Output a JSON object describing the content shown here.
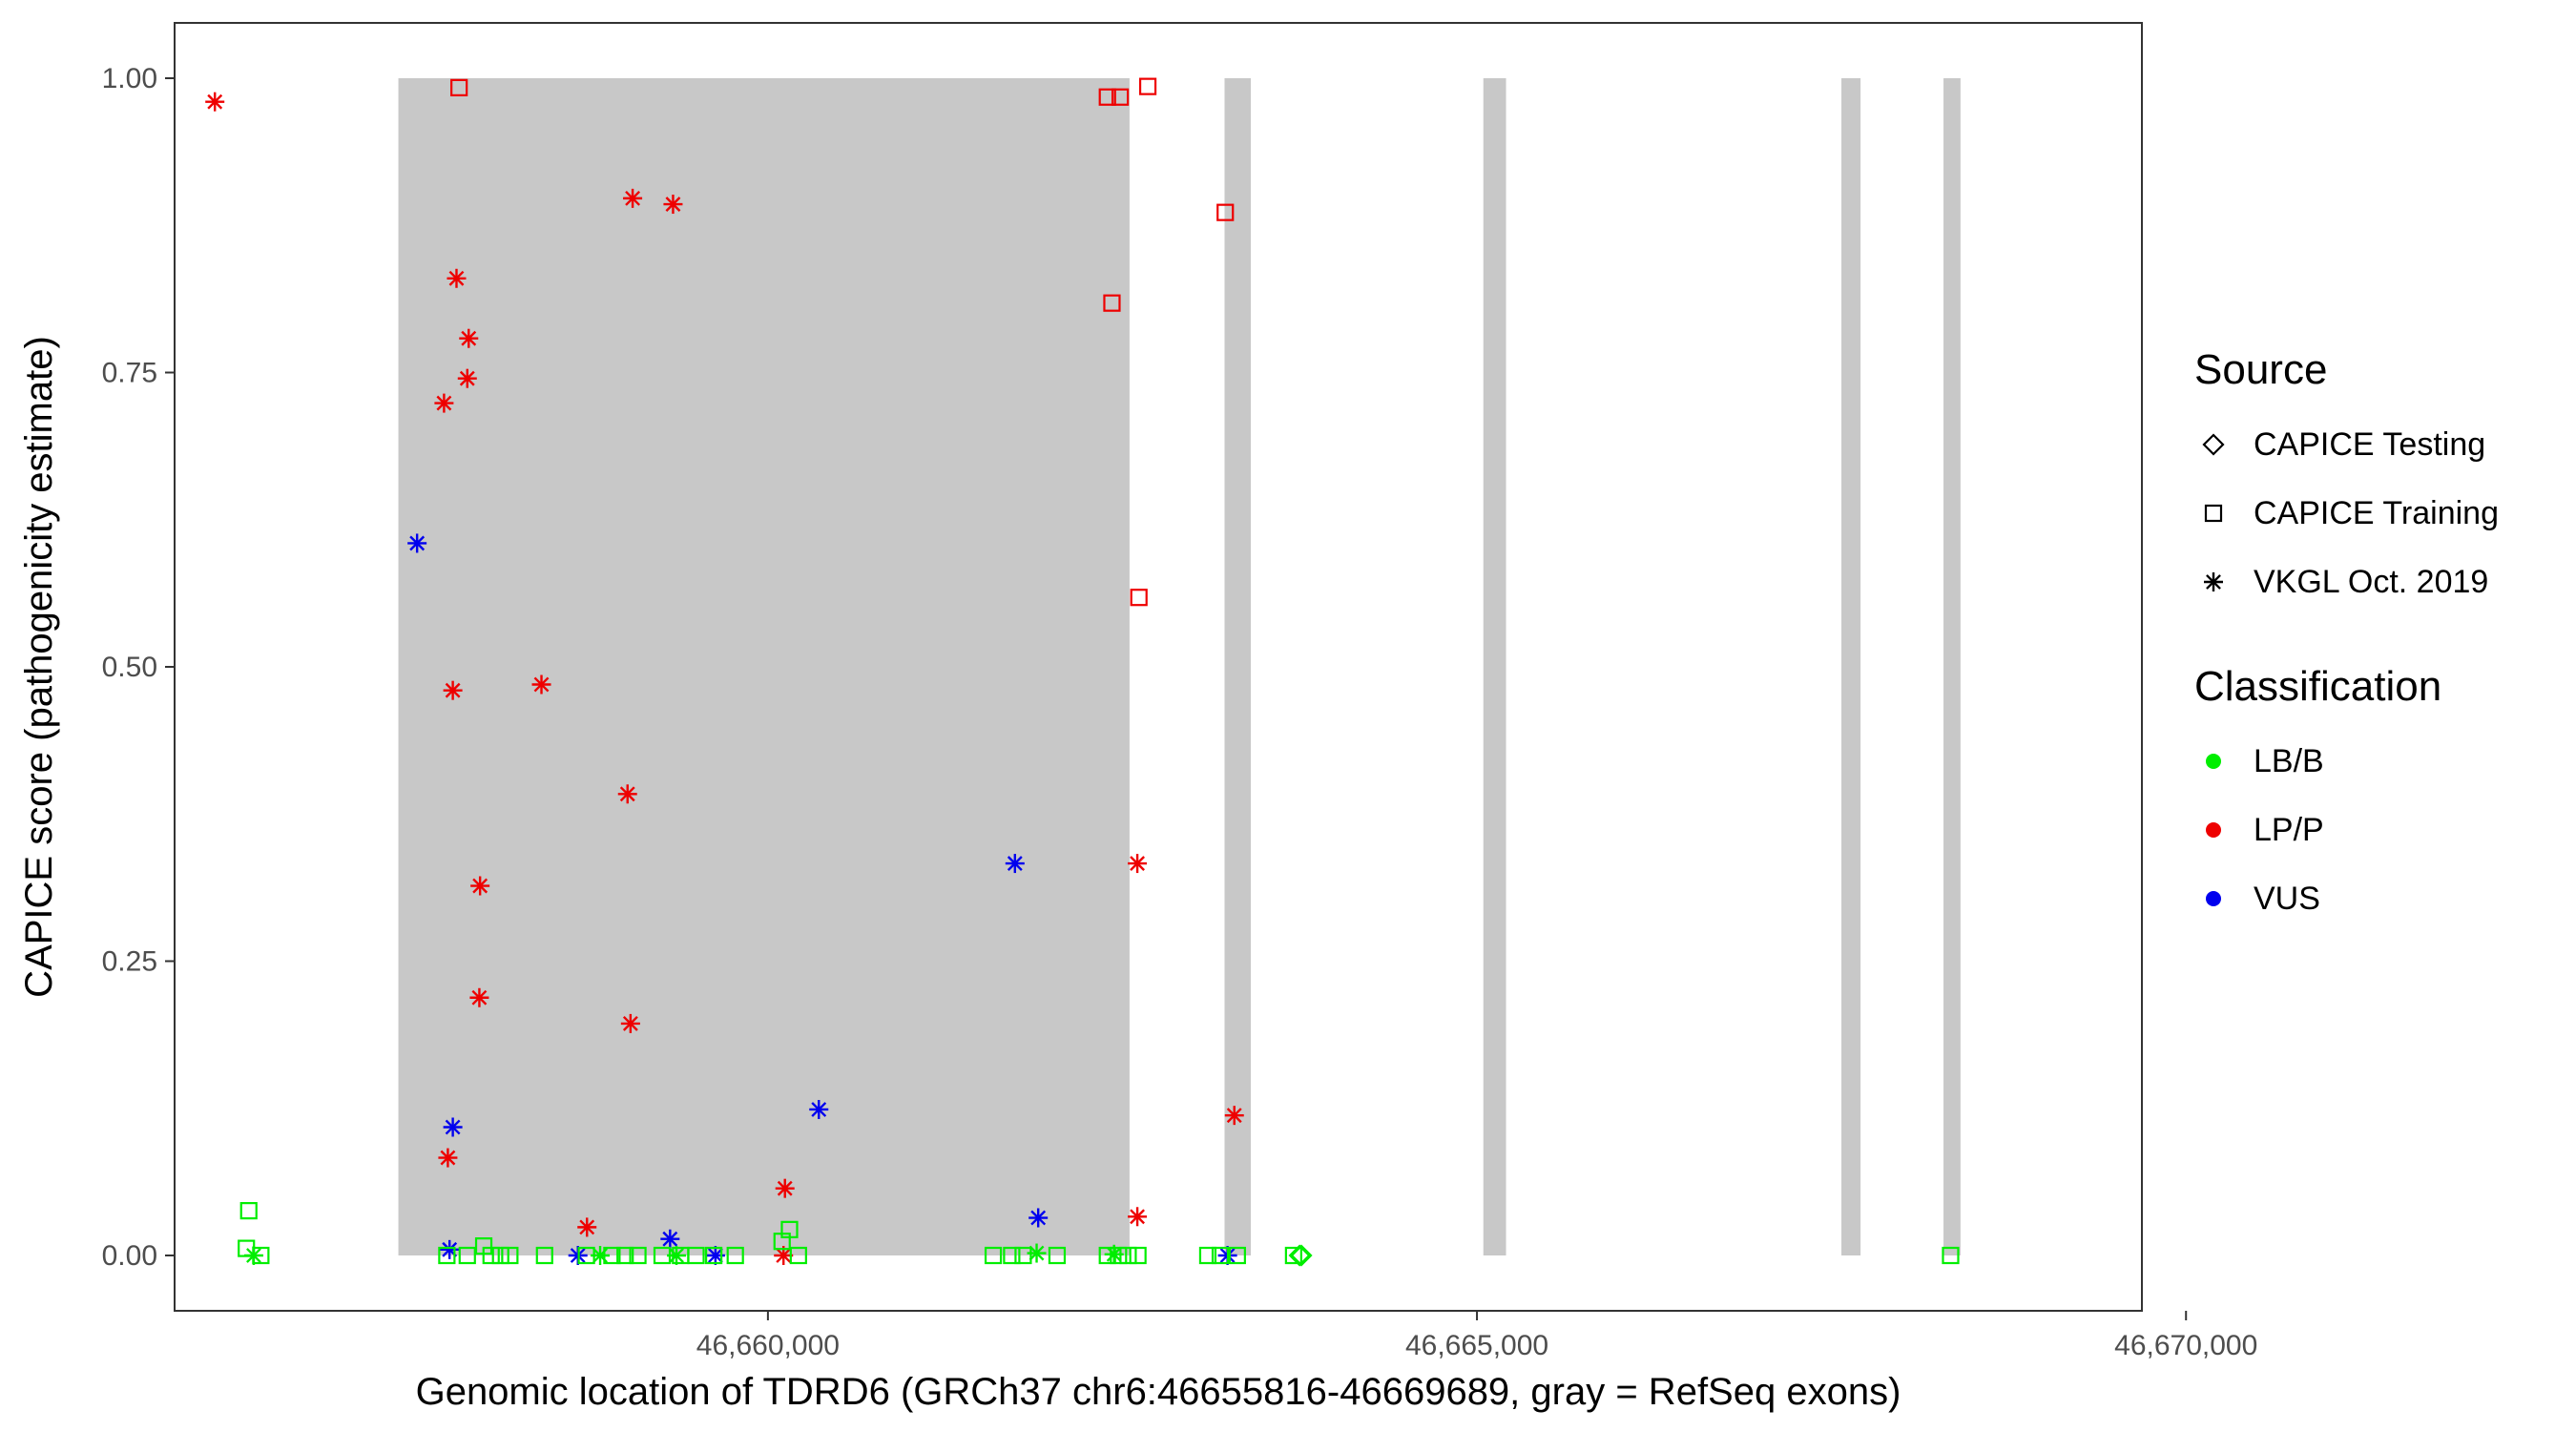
{
  "chart_data": {
    "type": "scatter",
    "xlabel": "Genomic location of TDRD6 (GRCh37 chr6:46655816-46669689, gray = RefSeq exons)",
    "ylabel": "CAPICE score (pathogenicity estimate)",
    "xlim": [
      46655816,
      46669689
    ],
    "ylim": [
      -0.047,
      1.047
    ],
    "x_ticks": [
      46660000,
      46665000,
      46670000
    ],
    "x_tick_labels": [
      "46,660,000",
      "46,665,000",
      "46,670,000"
    ],
    "y_ticks": [
      0.0,
      0.25,
      0.5,
      0.75,
      1.0
    ],
    "y_tick_labels": [
      "0.00",
      "0.25",
      "0.50",
      "0.75",
      "1.00"
    ],
    "grid": false,
    "exons": [
      {
        "start": 46657394,
        "end": 46662550
      },
      {
        "start": 46663220,
        "end": 46663405
      },
      {
        "start": 46665045,
        "end": 46665205
      },
      {
        "start": 46667570,
        "end": 46667705
      },
      {
        "start": 46668290,
        "end": 46668410
      }
    ],
    "exon_color": "#c8c8c8",
    "colors": {
      "LB/B": "#00ee00",
      "LP/P": "#ee0000",
      "VUS": "#0000ee"
    },
    "legend_position": "right",
    "legend": {
      "source_title": "Source",
      "source_items": [
        {
          "label": "CAPICE Testing",
          "shape": "diamond"
        },
        {
          "label": "CAPICE Training",
          "shape": "square"
        },
        {
          "label": "VKGL Oct. 2019",
          "shape": "asterisk"
        }
      ],
      "class_title": "Classification",
      "class_items": [
        {
          "label": "LB/B",
          "color": "#00ee00"
        },
        {
          "label": "LP/P",
          "color": "#ee0000"
        },
        {
          "label": "VUS",
          "color": "#0000ee"
        }
      ]
    },
    "points": [
      {
        "x": 46656100,
        "y": 0.98,
        "source": "VKGL Oct. 2019",
        "class": "LP/P"
      },
      {
        "x": 46659046,
        "y": 0.898,
        "source": "VKGL Oct. 2019",
        "class": "LP/P"
      },
      {
        "x": 46659331,
        "y": 0.893,
        "source": "VKGL Oct. 2019",
        "class": "LP/P"
      },
      {
        "x": 46657804,
        "y": 0.83,
        "source": "VKGL Oct. 2019",
        "class": "LP/P"
      },
      {
        "x": 46657890,
        "y": 0.779,
        "source": "VKGL Oct. 2019",
        "class": "LP/P"
      },
      {
        "x": 46657880,
        "y": 0.745,
        "source": "VKGL Oct. 2019",
        "class": "LP/P"
      },
      {
        "x": 46657716,
        "y": 0.724,
        "source": "VKGL Oct. 2019",
        "class": "LP/P"
      },
      {
        "x": 46657778,
        "y": 0.48,
        "source": "VKGL Oct. 2019",
        "class": "LP/P"
      },
      {
        "x": 46658403,
        "y": 0.485,
        "source": "VKGL Oct. 2019",
        "class": "LP/P"
      },
      {
        "x": 46659010,
        "y": 0.392,
        "source": "VKGL Oct. 2019",
        "class": "LP/P"
      },
      {
        "x": 46657970,
        "y": 0.314,
        "source": "VKGL Oct. 2019",
        "class": "LP/P"
      },
      {
        "x": 46657965,
        "y": 0.219,
        "source": "VKGL Oct. 2019",
        "class": "LP/P"
      },
      {
        "x": 46659031,
        "y": 0.197,
        "source": "VKGL Oct. 2019",
        "class": "LP/P"
      },
      {
        "x": 46657743,
        "y": 0.083,
        "source": "VKGL Oct. 2019",
        "class": "LP/P"
      },
      {
        "x": 46658724,
        "y": 0.024,
        "source": "VKGL Oct. 2019",
        "class": "LP/P"
      },
      {
        "x": 46660120,
        "y": 0.057,
        "source": "VKGL Oct. 2019",
        "class": "LP/P"
      },
      {
        "x": 46660110,
        "y": 0.0,
        "source": "VKGL Oct. 2019",
        "class": "LP/P"
      },
      {
        "x": 46662605,
        "y": 0.333,
        "source": "VKGL Oct. 2019",
        "class": "LP/P"
      },
      {
        "x": 46662605,
        "y": 0.033,
        "source": "VKGL Oct. 2019",
        "class": "LP/P"
      },
      {
        "x": 46663289,
        "y": 0.119,
        "source": "VKGL Oct. 2019",
        "class": "LP/P"
      },
      {
        "x": 46657526,
        "y": 0.605,
        "source": "VKGL Oct. 2019",
        "class": "VUS"
      },
      {
        "x": 46657778,
        "y": 0.109,
        "source": "VKGL Oct. 2019",
        "class": "VUS"
      },
      {
        "x": 46657755,
        "y": 0.005,
        "source": "VKGL Oct. 2019",
        "class": "VUS"
      },
      {
        "x": 46658660,
        "y": 0.0,
        "source": "VKGL Oct. 2019",
        "class": "VUS"
      },
      {
        "x": 46659310,
        "y": 0.014,
        "source": "VKGL Oct. 2019",
        "class": "VUS"
      },
      {
        "x": 46659630,
        "y": 0.0,
        "source": "VKGL Oct. 2019",
        "class": "VUS"
      },
      {
        "x": 46660359,
        "y": 0.124,
        "source": "VKGL Oct. 2019",
        "class": "VUS"
      },
      {
        "x": 46661742,
        "y": 0.333,
        "source": "VKGL Oct. 2019",
        "class": "VUS"
      },
      {
        "x": 46661906,
        "y": 0.032,
        "source": "VKGL Oct. 2019",
        "class": "VUS"
      },
      {
        "x": 46663241,
        "y": 0.0,
        "source": "VKGL Oct. 2019",
        "class": "VUS"
      },
      {
        "x": 46656374,
        "y": 0.0,
        "source": "VKGL Oct. 2019",
        "class": "LB/B"
      },
      {
        "x": 46658817,
        "y": 0.0,
        "source": "VKGL Oct. 2019",
        "class": "LB/B"
      },
      {
        "x": 46659355,
        "y": 0.0,
        "source": "VKGL Oct. 2019",
        "class": "LB/B"
      },
      {
        "x": 46662441,
        "y": 0.001,
        "source": "VKGL Oct. 2019",
        "class": "LB/B"
      },
      {
        "x": 46661895,
        "y": 0.002,
        "source": "VKGL Oct. 2019",
        "class": "LB/B"
      },
      {
        "x": 46657822,
        "y": 0.992,
        "source": "CAPICE Training",
        "class": "LP/P"
      },
      {
        "x": 46662394,
        "y": 0.984,
        "source": "CAPICE Training",
        "class": "LP/P"
      },
      {
        "x": 46662484,
        "y": 0.984,
        "source": "CAPICE Training",
        "class": "LP/P"
      },
      {
        "x": 46662679,
        "y": 0.993,
        "source": "CAPICE Training",
        "class": "LP/P"
      },
      {
        "x": 46663225,
        "y": 0.886,
        "source": "CAPICE Training",
        "class": "LP/P"
      },
      {
        "x": 46662426,
        "y": 0.809,
        "source": "CAPICE Training",
        "class": "LP/P"
      },
      {
        "x": 46662616,
        "y": 0.559,
        "source": "CAPICE Training",
        "class": "LP/P"
      },
      {
        "x": 46656339,
        "y": 0.038,
        "source": "CAPICE Training",
        "class": "LB/B"
      },
      {
        "x": 46656322,
        "y": 0.006,
        "source": "CAPICE Training",
        "class": "LB/B"
      },
      {
        "x": 46656424,
        "y": 0.0,
        "source": "CAPICE Training",
        "class": "LB/B"
      },
      {
        "x": 46657736,
        "y": 0.0,
        "source": "CAPICE Training",
        "class": "LB/B"
      },
      {
        "x": 46657880,
        "y": 0.0,
        "source": "CAPICE Training",
        "class": "LB/B"
      },
      {
        "x": 46657996,
        "y": 0.008,
        "source": "CAPICE Training",
        "class": "LB/B"
      },
      {
        "x": 46658048,
        "y": 0.0,
        "source": "CAPICE Training",
        "class": "LB/B"
      },
      {
        "x": 46658115,
        "y": 0.0,
        "source": "CAPICE Training",
        "class": "LB/B"
      },
      {
        "x": 46658180,
        "y": 0.0,
        "source": "CAPICE Training",
        "class": "LB/B"
      },
      {
        "x": 46658425,
        "y": 0.0,
        "source": "CAPICE Training",
        "class": "LB/B"
      },
      {
        "x": 46658720,
        "y": 0.0,
        "source": "CAPICE Training",
        "class": "LB/B"
      },
      {
        "x": 46658900,
        "y": 0.0,
        "source": "CAPICE Training",
        "class": "LB/B"
      },
      {
        "x": 46658993,
        "y": 0.0,
        "source": "CAPICE Training",
        "class": "LB/B"
      },
      {
        "x": 46659083,
        "y": 0.0,
        "source": "CAPICE Training",
        "class": "LB/B"
      },
      {
        "x": 46659254,
        "y": 0.0,
        "source": "CAPICE Training",
        "class": "LB/B"
      },
      {
        "x": 46659384,
        "y": 0.0,
        "source": "CAPICE Training",
        "class": "LB/B"
      },
      {
        "x": 46659493,
        "y": 0.0,
        "source": "CAPICE Training",
        "class": "LB/B"
      },
      {
        "x": 46659618,
        "y": 0.0,
        "source": "CAPICE Training",
        "class": "LB/B"
      },
      {
        "x": 46659770,
        "y": 0.0,
        "source": "CAPICE Training",
        "class": "LB/B"
      },
      {
        "x": 46660100,
        "y": 0.012,
        "source": "CAPICE Training",
        "class": "LB/B"
      },
      {
        "x": 46660152,
        "y": 0.022,
        "source": "CAPICE Training",
        "class": "LB/B"
      },
      {
        "x": 46660215,
        "y": 0.0,
        "source": "CAPICE Training",
        "class": "LB/B"
      },
      {
        "x": 46661589,
        "y": 0.0,
        "source": "CAPICE Training",
        "class": "LB/B"
      },
      {
        "x": 46661719,
        "y": 0.0,
        "source": "CAPICE Training",
        "class": "LB/B"
      },
      {
        "x": 46661800,
        "y": 0.0,
        "source": "CAPICE Training",
        "class": "LB/B"
      },
      {
        "x": 46662039,
        "y": 0.0,
        "source": "CAPICE Training",
        "class": "LB/B"
      },
      {
        "x": 46662394,
        "y": 0.0,
        "source": "CAPICE Training",
        "class": "LB/B"
      },
      {
        "x": 46662472,
        "y": 0.0,
        "source": "CAPICE Training",
        "class": "LB/B"
      },
      {
        "x": 46662540,
        "y": 0.0,
        "source": "CAPICE Training",
        "class": "LB/B"
      },
      {
        "x": 46662609,
        "y": 0.0,
        "source": "CAPICE Training",
        "class": "LB/B"
      },
      {
        "x": 46663102,
        "y": 0.0,
        "source": "CAPICE Training",
        "class": "LB/B"
      },
      {
        "x": 46663190,
        "y": 0.0,
        "source": "CAPICE Training",
        "class": "LB/B"
      },
      {
        "x": 46663310,
        "y": 0.0,
        "source": "CAPICE Training",
        "class": "LB/B"
      },
      {
        "x": 46663707,
        "y": 0.0,
        "source": "CAPICE Training",
        "class": "LB/B"
      },
      {
        "x": 46668340,
        "y": 0.0,
        "source": "CAPICE Training",
        "class": "LB/B"
      },
      {
        "x": 46663749,
        "y": 0.0,
        "source": "CAPICE Testing",
        "class": "LB/B"
      },
      {
        "x": 46663762,
        "y": 0.0,
        "source": "CAPICE Testing",
        "class": "LB/B"
      }
    ]
  }
}
